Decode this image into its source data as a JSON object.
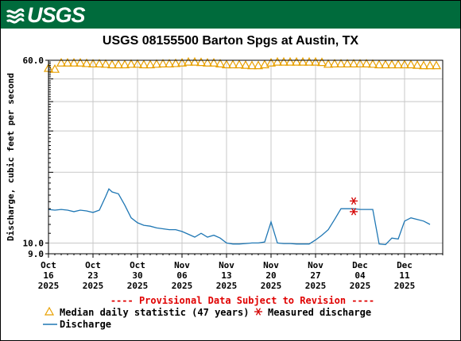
{
  "header": {
    "logo_text": "USGS"
  },
  "chart_data": {
    "type": "line",
    "title": "USGS 08155500 Barton Spgs at Austin, TX",
    "ylabel": "Discharge, cubic feet per second",
    "y_scale": "log",
    "ylim": [
      9.0,
      60.0
    ],
    "y_ticks": [
      {
        "value": 60.0,
        "label": "60.0"
      },
      {
        "value": 10.0,
        "label": "10.0"
      },
      {
        "value": 9.0,
        "label": "9.0"
      }
    ],
    "xlim": [
      "2025-10-16",
      "2025-12-17"
    ],
    "x_ticks": [
      {
        "date": "2025-10-16",
        "label1": "Oct",
        "label2": "16",
        "label3": "2025"
      },
      {
        "date": "2025-10-23",
        "label1": "Oct",
        "label2": "23",
        "label3": "2025"
      },
      {
        "date": "2025-10-30",
        "label1": "Oct",
        "label2": "30",
        "label3": "2025"
      },
      {
        "date": "2025-11-06",
        "label1": "Nov",
        "label2": "06",
        "label3": "2025"
      },
      {
        "date": "2025-11-13",
        "label1": "Nov",
        "label2": "13",
        "label3": "2025"
      },
      {
        "date": "2025-11-20",
        "label1": "Nov",
        "label2": "20",
        "label3": "2025"
      },
      {
        "date": "2025-11-27",
        "label1": "Nov",
        "label2": "27",
        "label3": "2025"
      },
      {
        "date": "2025-12-04",
        "label1": "Dec",
        "label2": "04",
        "label3": "2025"
      },
      {
        "date": "2025-12-11",
        "label1": "Dec",
        "label2": "11",
        "label3": "2025"
      }
    ],
    "grid": true,
    "series": [
      {
        "name": "Median daily statistic (47 years)",
        "marker": "triangle",
        "color": "#e8a000",
        "points": [
          [
            "2025-10-16",
            55.5
          ],
          [
            "2025-10-17",
            55.0
          ],
          [
            "2025-10-18",
            58.5
          ],
          [
            "2025-10-19",
            58.5
          ],
          [
            "2025-10-20",
            58.5
          ],
          [
            "2025-10-21",
            58.5
          ],
          [
            "2025-10-22",
            58.2
          ],
          [
            "2025-10-23",
            58.0
          ],
          [
            "2025-10-24",
            58.0
          ],
          [
            "2025-10-25",
            57.8
          ],
          [
            "2025-10-26",
            57.5
          ],
          [
            "2025-10-27",
            57.5
          ],
          [
            "2025-10-28",
            57.5
          ],
          [
            "2025-10-29",
            57.8
          ],
          [
            "2025-10-30",
            57.8
          ],
          [
            "2025-10-31",
            57.5
          ],
          [
            "2025-11-01",
            57.5
          ],
          [
            "2025-11-02",
            57.8
          ],
          [
            "2025-11-03",
            58.0
          ],
          [
            "2025-11-04",
            58.0
          ],
          [
            "2025-11-05",
            58.2
          ],
          [
            "2025-11-06",
            58.5
          ],
          [
            "2025-11-07",
            59.0
          ],
          [
            "2025-11-08",
            59.0
          ],
          [
            "2025-11-09",
            58.8
          ],
          [
            "2025-11-10",
            58.5
          ],
          [
            "2025-11-11",
            58.5
          ],
          [
            "2025-11-12",
            58.0
          ],
          [
            "2025-11-13",
            57.5
          ],
          [
            "2025-11-14",
            57.5
          ],
          [
            "2025-11-15",
            57.5
          ],
          [
            "2025-11-16",
            57.2
          ],
          [
            "2025-11-17",
            57.0
          ],
          [
            "2025-11-18",
            57.0
          ],
          [
            "2025-11-19",
            57.5
          ],
          [
            "2025-11-20",
            58.5
          ],
          [
            "2025-11-21",
            59.0
          ],
          [
            "2025-11-22",
            59.0
          ],
          [
            "2025-11-23",
            59.0
          ],
          [
            "2025-11-24",
            59.0
          ],
          [
            "2025-11-25",
            59.0
          ],
          [
            "2025-11-26",
            59.0
          ],
          [
            "2025-11-27",
            59.0
          ],
          [
            "2025-11-28",
            58.8
          ],
          [
            "2025-11-29",
            57.8
          ],
          [
            "2025-11-30",
            58.0
          ],
          [
            "2025-12-01",
            58.0
          ],
          [
            "2025-12-02",
            58.0
          ],
          [
            "2025-12-03",
            58.0
          ],
          [
            "2025-12-04",
            58.0
          ],
          [
            "2025-12-05",
            58.0
          ],
          [
            "2025-12-06",
            57.8
          ],
          [
            "2025-12-07",
            57.5
          ],
          [
            "2025-12-08",
            57.5
          ],
          [
            "2025-12-09",
            57.5
          ],
          [
            "2025-12-10",
            57.5
          ],
          [
            "2025-12-11",
            57.5
          ],
          [
            "2025-12-12",
            57.5
          ],
          [
            "2025-12-13",
            57.2
          ],
          [
            "2025-12-14",
            57.0
          ],
          [
            "2025-12-15",
            57.0
          ],
          [
            "2025-12-16",
            57.0
          ]
        ]
      },
      {
        "name": "Measured discharge",
        "marker": "asterisk",
        "color": "#d40000",
        "points": [
          [
            "2025-12-03",
            15.1
          ],
          [
            "2025-12-03",
            13.6
          ]
        ]
      },
      {
        "name": "Discharge",
        "marker": "line",
        "color": "#1f77b4",
        "points": [
          [
            "2025-10-16",
            13.9
          ],
          [
            "2025-10-17",
            13.8
          ],
          [
            "2025-10-18",
            13.9
          ],
          [
            "2025-10-19",
            13.8
          ],
          [
            "2025-10-20",
            13.6
          ],
          [
            "2025-10-21",
            13.8
          ],
          [
            "2025-10-22",
            13.7
          ],
          [
            "2025-10-23",
            13.5
          ],
          [
            "2025-10-24",
            13.8
          ],
          [
            "2025-10-25",
            15.8
          ],
          [
            "2025-10-25.5",
            17.0
          ],
          [
            "2025-10-26",
            16.5
          ],
          [
            "2025-10-27",
            16.2
          ],
          [
            "2025-10-28",
            14.5
          ],
          [
            "2025-10-29",
            12.8
          ],
          [
            "2025-10-30",
            12.2
          ],
          [
            "2025-10-31",
            11.9
          ],
          [
            "2025-11-01",
            11.8
          ],
          [
            "2025-11-02",
            11.6
          ],
          [
            "2025-11-03",
            11.5
          ],
          [
            "2025-11-04",
            11.4
          ],
          [
            "2025-11-05",
            11.4
          ],
          [
            "2025-11-06",
            11.2
          ],
          [
            "2025-11-07",
            10.9
          ],
          [
            "2025-11-08",
            10.6
          ],
          [
            "2025-11-09",
            11.0
          ],
          [
            "2025-11-10",
            10.6
          ],
          [
            "2025-11-11",
            10.8
          ],
          [
            "2025-11-12",
            10.5
          ],
          [
            "2025-11-13",
            10.0
          ],
          [
            "2025-11-14",
            9.9
          ],
          [
            "2025-11-15",
            9.9
          ],
          [
            "2025-11-16",
            9.95
          ],
          [
            "2025-11-17",
            10.0
          ],
          [
            "2025-11-18",
            10.0
          ],
          [
            "2025-11-19",
            10.1
          ],
          [
            "2025-11-20",
            12.3
          ],
          [
            "2025-11-21",
            10.0
          ],
          [
            "2025-11-22",
            9.95
          ],
          [
            "2025-11-23",
            9.95
          ],
          [
            "2025-11-24",
            9.9
          ],
          [
            "2025-11-25",
            9.9
          ],
          [
            "2025-11-26",
            9.9
          ],
          [
            "2025-11-27",
            10.3
          ],
          [
            "2025-11-28",
            10.8
          ],
          [
            "2025-11-29",
            11.4
          ],
          [
            "2025-11-30",
            12.6
          ],
          [
            "2025-12-01",
            14.0
          ],
          [
            "2025-12-02",
            14.0
          ],
          [
            "2025-12-03",
            14.0
          ],
          [
            "2025-12-04",
            13.9
          ],
          [
            "2025-12-05",
            13.9
          ],
          [
            "2025-12-06",
            13.9
          ],
          [
            "2025-12-07",
            9.9
          ],
          [
            "2025-12-08",
            9.85
          ],
          [
            "2025-12-09",
            10.5
          ],
          [
            "2025-12-10",
            10.4
          ],
          [
            "2025-12-11",
            12.4
          ],
          [
            "2025-12-12",
            12.8
          ],
          [
            "2025-12-13",
            12.6
          ],
          [
            "2025-12-14",
            12.4
          ],
          [
            "2025-12-15",
            12.0
          ]
        ]
      }
    ]
  },
  "notice": "---- Provisional Data Subject to Revision ----",
  "legend": {
    "median_label": "Median daily statistic (47 years)",
    "measured_label": "Measured discharge",
    "discharge_label": "Discharge"
  }
}
